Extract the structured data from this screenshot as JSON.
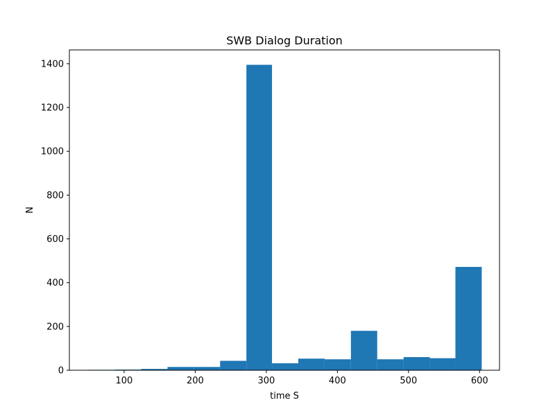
{
  "chart_data": {
    "type": "bar",
    "title": "SWB Dialog Duration",
    "xlabel": "time S",
    "ylabel": "N",
    "xlim": [
      23,
      628
    ],
    "ylim": [
      0,
      1463
    ],
    "xticks": [
      100,
      200,
      300,
      400,
      500,
      600
    ],
    "yticks": [
      0,
      200,
      400,
      600,
      800,
      1000,
      1200,
      1400
    ],
    "bar_color": "#1f77b4",
    "bins": [
      {
        "x0": 50,
        "x1": 87,
        "value": 2
      },
      {
        "x0": 87,
        "x1": 124,
        "value": 3
      },
      {
        "x0": 124,
        "x1": 161,
        "value": 6
      },
      {
        "x0": 161,
        "x1": 198,
        "value": 15
      },
      {
        "x0": 198,
        "x1": 235,
        "value": 15
      },
      {
        "x0": 235,
        "x1": 272,
        "value": 43
      },
      {
        "x0": 272,
        "x1": 308,
        "value": 1395
      },
      {
        "x0": 308,
        "x1": 345,
        "value": 32
      },
      {
        "x0": 345,
        "x1": 382,
        "value": 53
      },
      {
        "x0": 382,
        "x1": 419,
        "value": 50
      },
      {
        "x0": 419,
        "x1": 456,
        "value": 180
      },
      {
        "x0": 456,
        "x1": 493,
        "value": 50
      },
      {
        "x0": 493,
        "x1": 530,
        "value": 60
      },
      {
        "x0": 530,
        "x1": 566,
        "value": 55
      },
      {
        "x0": 566,
        "x1": 603,
        "value": 472
      }
    ],
    "grid": false,
    "legend": "none"
  }
}
